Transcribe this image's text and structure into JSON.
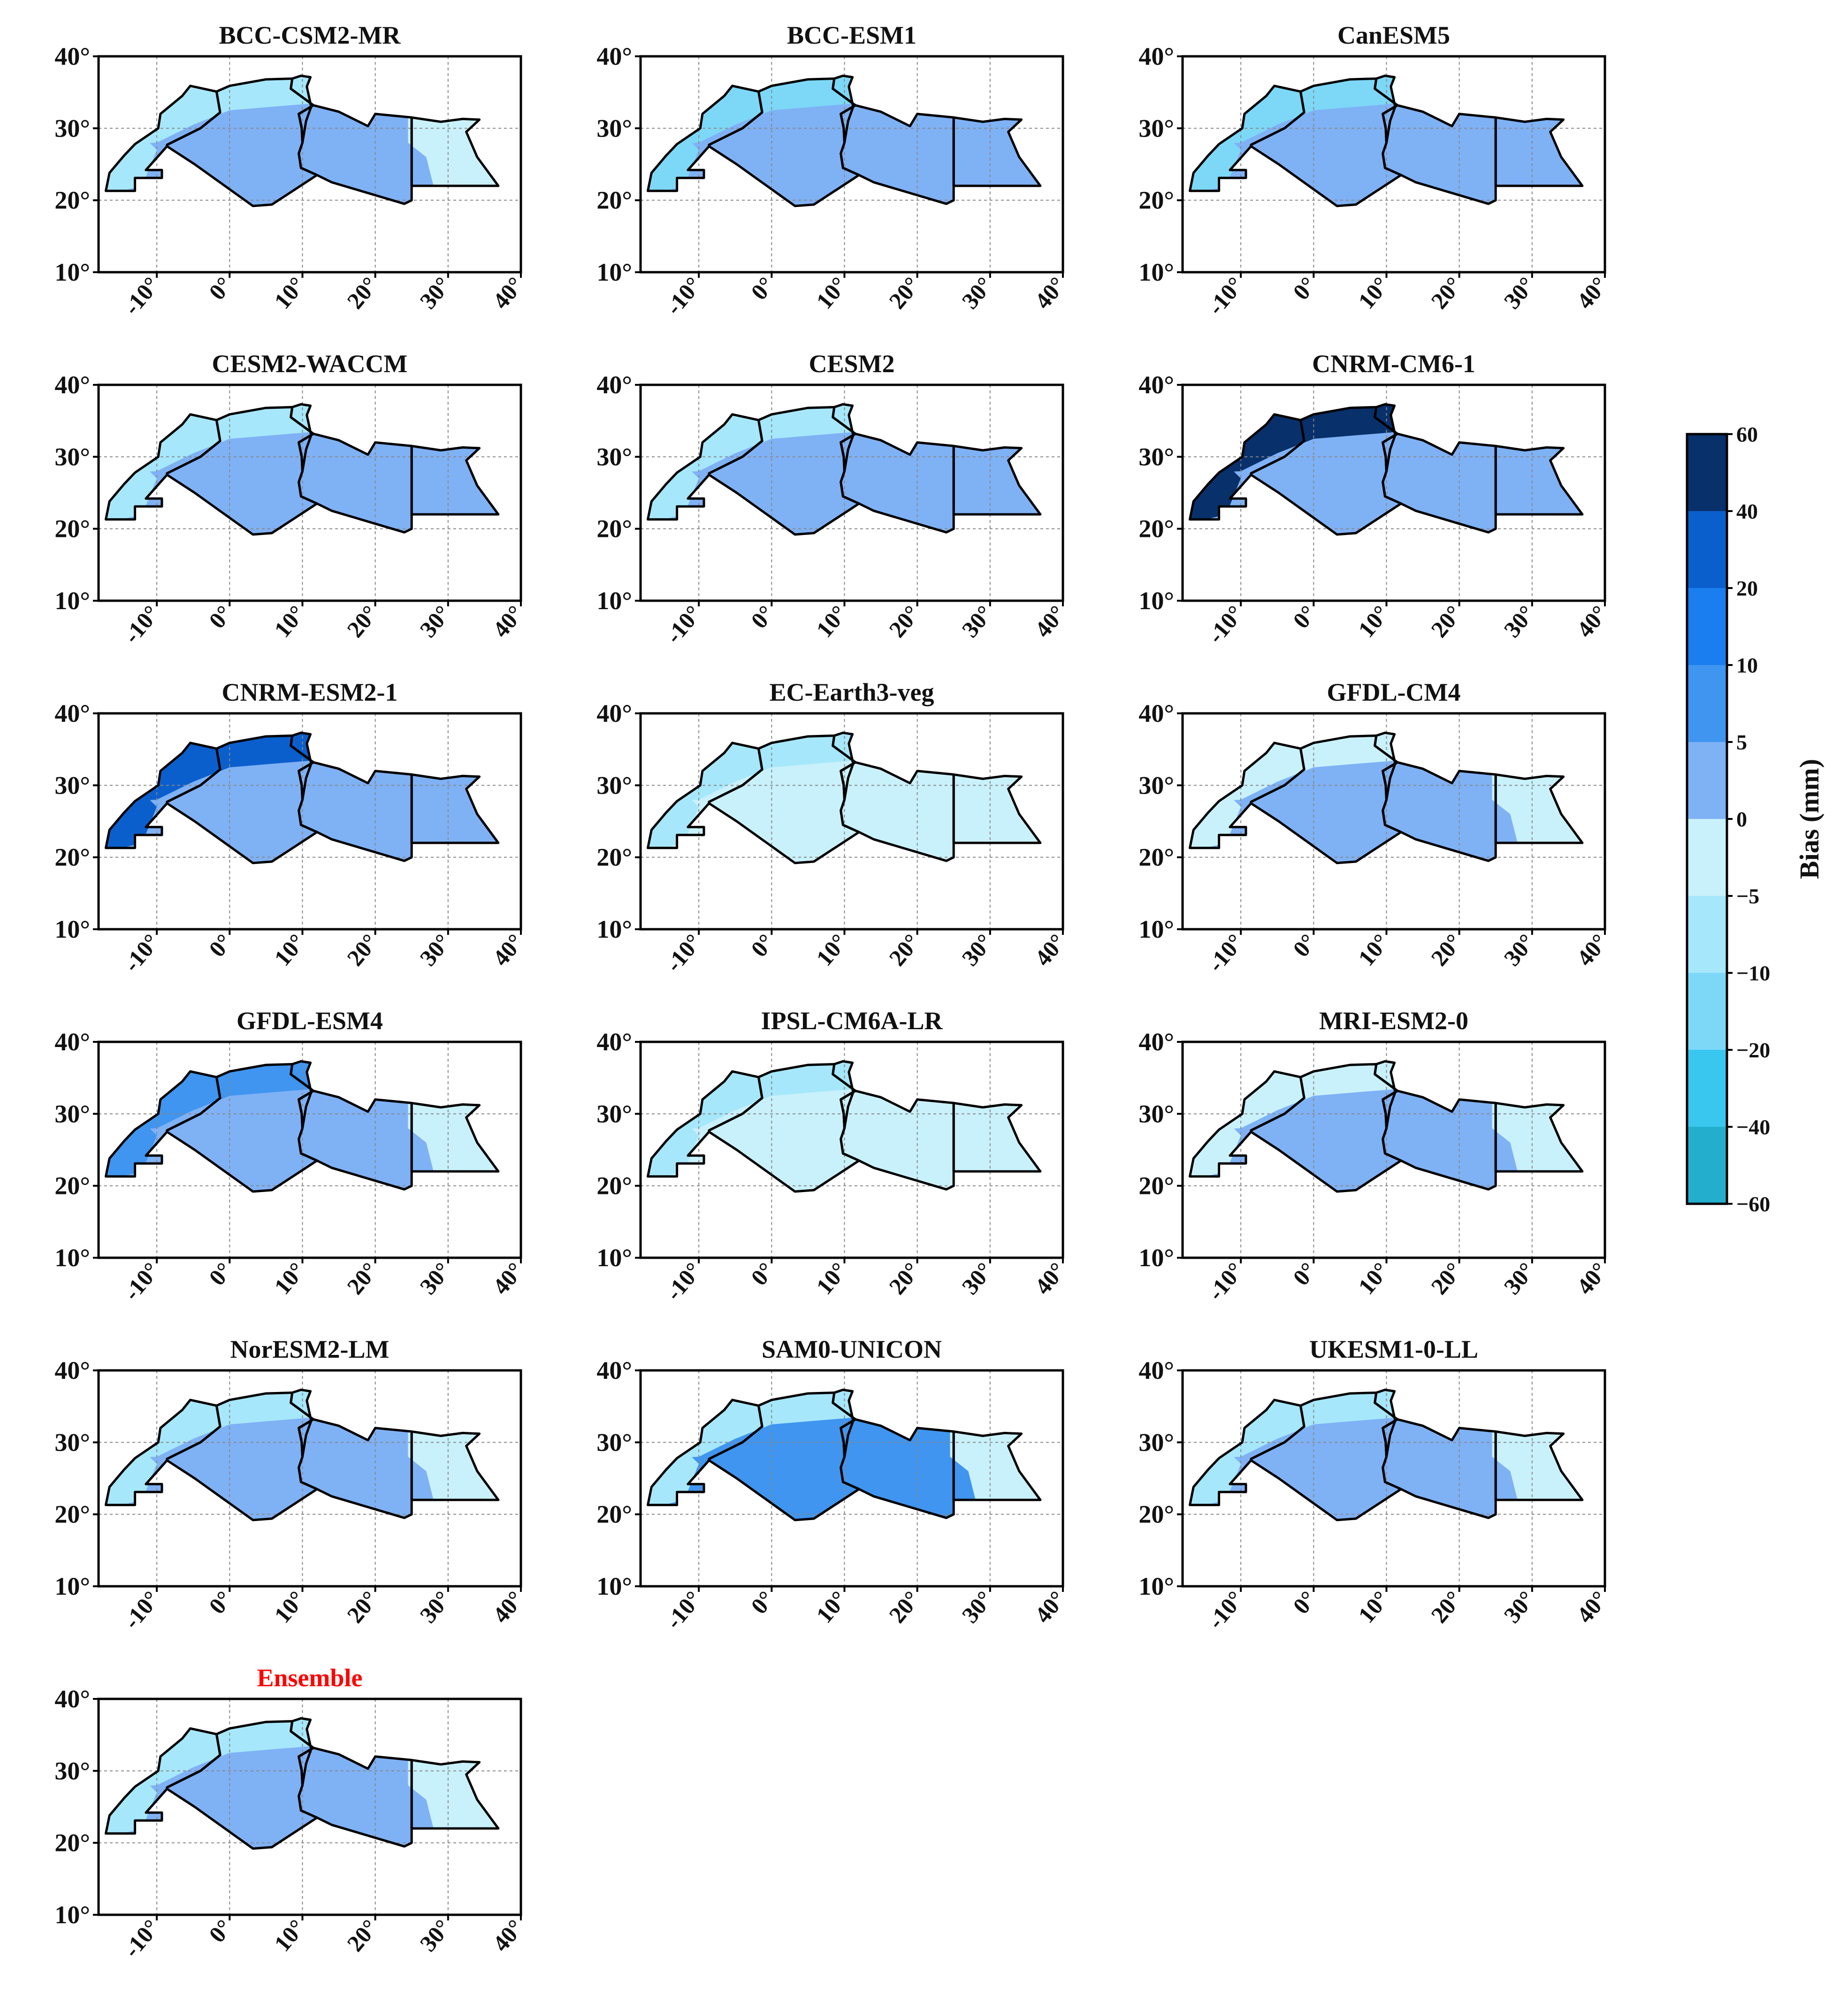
{
  "panels": [
    {
      "title": "BCC-CSM2-MR",
      "red": false,
      "north_level": "n10",
      "main_level": "p0",
      "east_level": "n5"
    },
    {
      "title": "BCC-ESM1",
      "red": false,
      "north_level": "n20",
      "main_level": "p0",
      "east_level": "p0"
    },
    {
      "title": "CanESM5",
      "red": false,
      "north_level": "n20",
      "main_level": "p0",
      "east_level": "p0"
    },
    {
      "title": "CESM2-WACCM",
      "red": false,
      "north_level": "n10",
      "main_level": "p0",
      "east_level": "p0"
    },
    {
      "title": "CESM2",
      "red": false,
      "north_level": "n10",
      "main_level": "p0",
      "east_level": "p0"
    },
    {
      "title": "CNRM-CM6-1",
      "red": false,
      "north_level": "p40",
      "main_level": "p0",
      "east_level": "p0"
    },
    {
      "title": "CNRM-ESM2-1",
      "red": false,
      "north_level": "p20",
      "main_level": "p0",
      "east_level": "p0"
    },
    {
      "title": "EC-Earth3-veg",
      "red": false,
      "north_level": "n10",
      "main_level": "n5",
      "east_level": "n5"
    },
    {
      "title": "GFDL-CM4",
      "red": false,
      "north_level": "n5",
      "main_level": "p0",
      "east_level": "n5"
    },
    {
      "title": "GFDL-ESM4",
      "red": false,
      "north_level": "p5",
      "main_level": "p0",
      "east_level": "n5"
    },
    {
      "title": "IPSL-CM6A-LR",
      "red": false,
      "north_level": "n10",
      "main_level": "n5",
      "east_level": "n5"
    },
    {
      "title": "MRI-ESM2-0",
      "red": false,
      "north_level": "n5",
      "main_level": "p0",
      "east_level": "n5"
    },
    {
      "title": "NorESM2-LM",
      "red": false,
      "north_level": "n10",
      "main_level": "p0",
      "east_level": "n5"
    },
    {
      "title": "SAM0-UNICON",
      "red": false,
      "north_level": "n10",
      "main_level": "p5",
      "east_level": "n5"
    },
    {
      "title": "UKESM1-0-LL",
      "red": false,
      "north_level": "n10",
      "main_level": "p0",
      "east_level": "n5"
    },
    {
      "title": "Ensemble",
      "red": true,
      "north_level": "n10",
      "main_level": "p0",
      "east_level": "n5"
    }
  ],
  "axes": {
    "y_ticks": [
      "40°",
      "30°",
      "20°",
      "10°"
    ],
    "x_ticks": [
      "-10°",
      "0°",
      "10°",
      "20°",
      "30°",
      "40°"
    ],
    "lat_range": [
      10,
      40
    ],
    "lon_range": [
      -18,
      40
    ]
  },
  "colorbar": {
    "title": "Bias (mm)",
    "labels": [
      "60",
      "40",
      "20",
      "10",
      "5",
      "0",
      "−5",
      "−10",
      "−20",
      "−40",
      "−60"
    ],
    "colors": {
      "p40": "#08306b",
      "p20": "#0b5fcd",
      "p10": "#1a7ef0",
      "p5": "#3f95ef",
      "p0": "#7fb1f5",
      "n5": "#c9f1fb",
      "n10": "#a6e7fb",
      "n20": "#7dd8f7",
      "n40": "#39c7ef",
      "n60": "#24aece"
    },
    "segments": [
      "p40",
      "p20",
      "p10",
      "p5",
      "p0",
      "n5",
      "n10",
      "n20",
      "n40",
      "n60"
    ]
  }
}
